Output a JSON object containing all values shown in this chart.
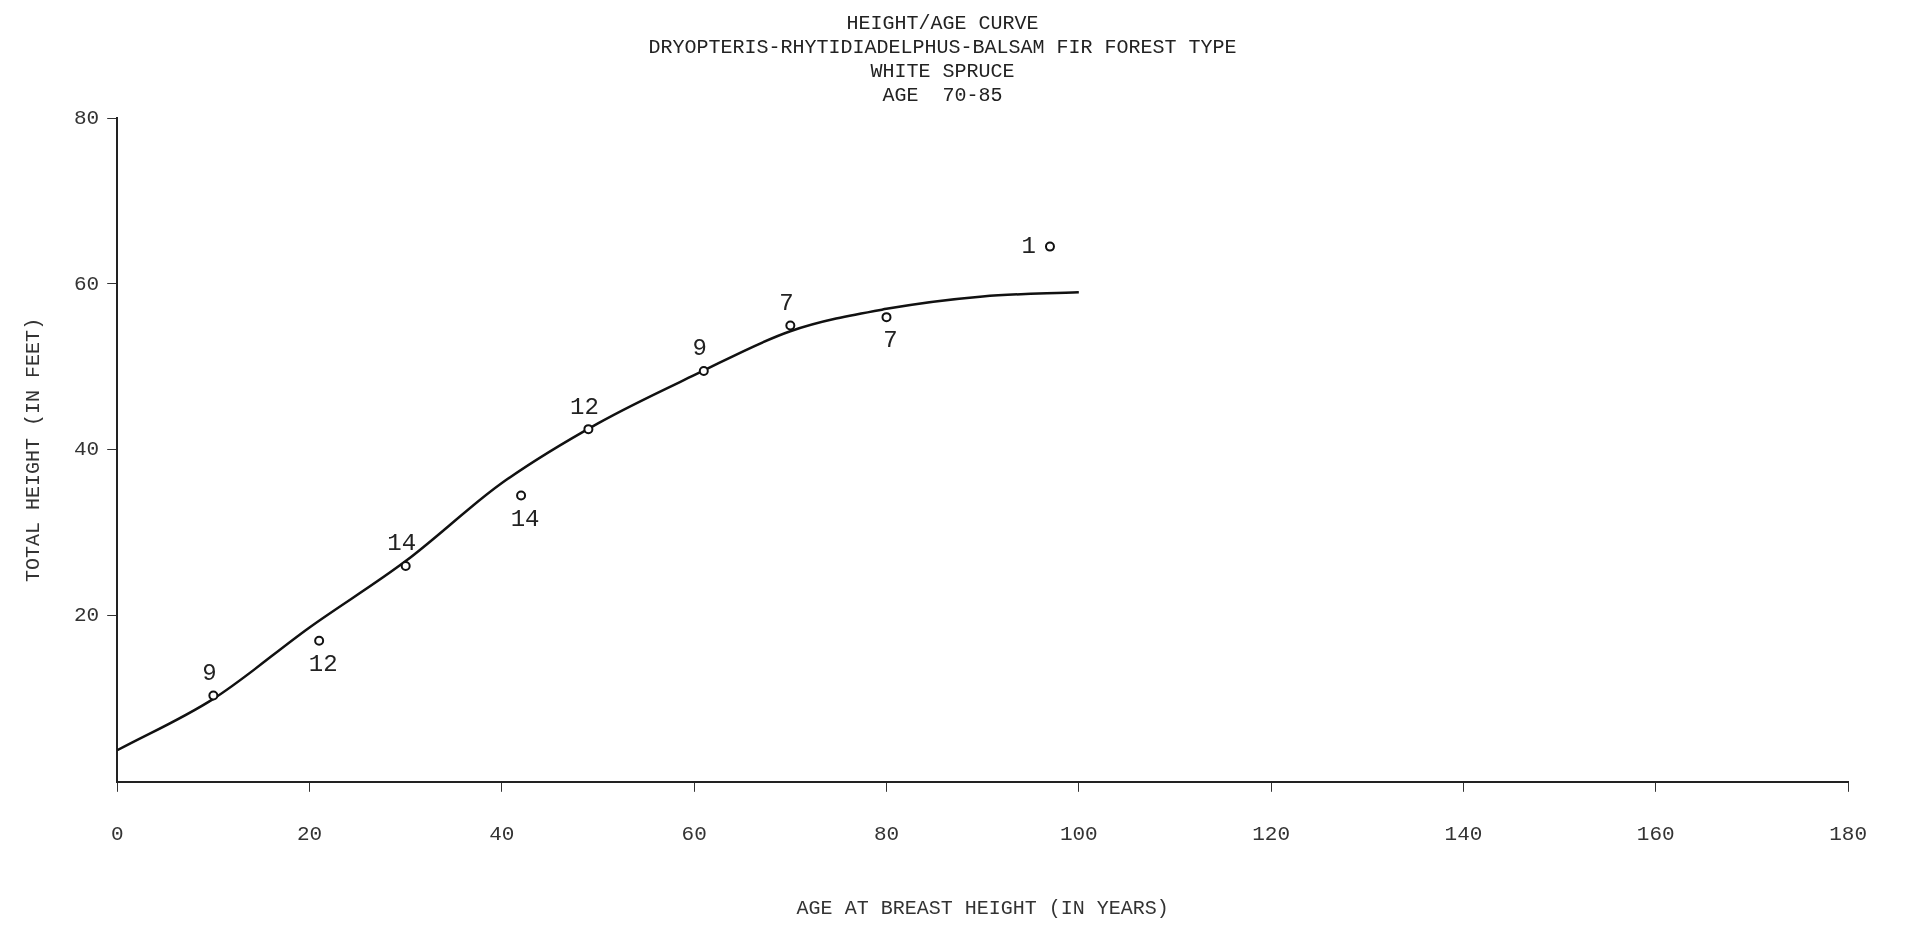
{
  "chart_data": {
    "type": "scatter",
    "title": "HEIGHT/AGE CURVE",
    "subtitle": "DRYOPTERIS-RHYTIDIADELPHUS-BALSAM FIR FOREST TYPE\nWHITE SPRUCE\nAGE  70-85",
    "xlabel": "AGE AT BREAST HEIGHT (IN YEARS)",
    "ylabel": "TOTAL HEIGHT (IN FEET)",
    "series": [
      {
        "color": "#111111",
        "marker": "circle",
        "x": [
          10,
          21,
          30,
          42,
          49,
          61,
          70,
          80,
          97
        ],
        "values": [
          10.4,
          17,
          26,
          34.5,
          42.5,
          49.5,
          55,
          56,
          64.5
        ]
      },
      {
        "type": "line",
        "marker": "none",
        "color": "#111111",
        "x": [
          0,
          10,
          20,
          30,
          40,
          50,
          60,
          70,
          80,
          90,
          100
        ],
        "values": [
          3.8,
          10,
          18.6,
          26.6,
          36,
          43.2,
          49,
          54.3,
          57,
          58.5,
          59
        ]
      }
    ],
    "annotations": [
      {
        "text": "9",
        "x": 10,
        "y": 10.4
      },
      {
        "text": "12",
        "x": 21,
        "y": 17
      },
      {
        "text": "14",
        "x": 30,
        "y": 26
      },
      {
        "text": "14",
        "x": 42,
        "y": 34.5
      },
      {
        "text": "12",
        "x": 49,
        "y": 42.5
      },
      {
        "text": "9",
        "x": 61,
        "y": 49.5
      },
      {
        "text": "7",
        "x": 70,
        "y": 55
      },
      {
        "text": "7",
        "x": 80,
        "y": 56
      },
      {
        "text": "1",
        "x": 97,
        "y": 64.5
      }
    ],
    "xlim": [
      0,
      180
    ],
    "xticks": [
      0,
      20,
      40,
      60,
      80,
      100,
      120,
      140,
      160,
      180
    ],
    "ylim": [
      0,
      80
    ],
    "yticks": [
      20,
      40,
      60,
      80
    ],
    "grid": false,
    "legend": false,
    "line_style": "solid"
  }
}
